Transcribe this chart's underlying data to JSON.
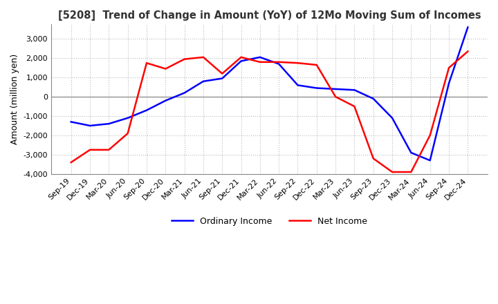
{
  "title": "[5208]  Trend of Change in Amount (YoY) of 12Mo Moving Sum of Incomes",
  "ylabel": "Amount (million yen)",
  "title_color": "#333333",
  "background_color": "#ffffff",
  "grid_color": "#bbbbbb",
  "x_labels": [
    "Sep-19",
    "Dec-19",
    "Mar-20",
    "Jun-20",
    "Sep-20",
    "Dec-20",
    "Mar-21",
    "Jun-21",
    "Sep-21",
    "Dec-21",
    "Mar-22",
    "Jun-22",
    "Sep-22",
    "Dec-22",
    "Mar-23",
    "Jun-23",
    "Sep-23",
    "Dec-23",
    "Mar-24",
    "Jun-24",
    "Sep-24",
    "Dec-24"
  ],
  "ordinary_income": [
    -1300,
    -1500,
    -1400,
    -1100,
    -700,
    -200,
    200,
    800,
    950,
    1850,
    2050,
    1700,
    600,
    450,
    400,
    350,
    -100,
    -1100,
    -2900,
    -3300,
    700,
    3600
  ],
  "net_income": [
    -3400,
    -2750,
    -2750,
    -1900,
    1750,
    1450,
    1950,
    2050,
    1200,
    2050,
    1800,
    1800,
    1750,
    1650,
    0,
    -500,
    -3200,
    -3900,
    -3900,
    -2000,
    1500,
    2350
  ],
  "ordinary_color": "#0000ff",
  "net_color": "#ff0000",
  "ylim": [
    -4000,
    3750
  ],
  "yticks": [
    -4000,
    -3000,
    -2000,
    -1000,
    0,
    1000,
    2000,
    3000
  ],
  "line_width": 1.8
}
